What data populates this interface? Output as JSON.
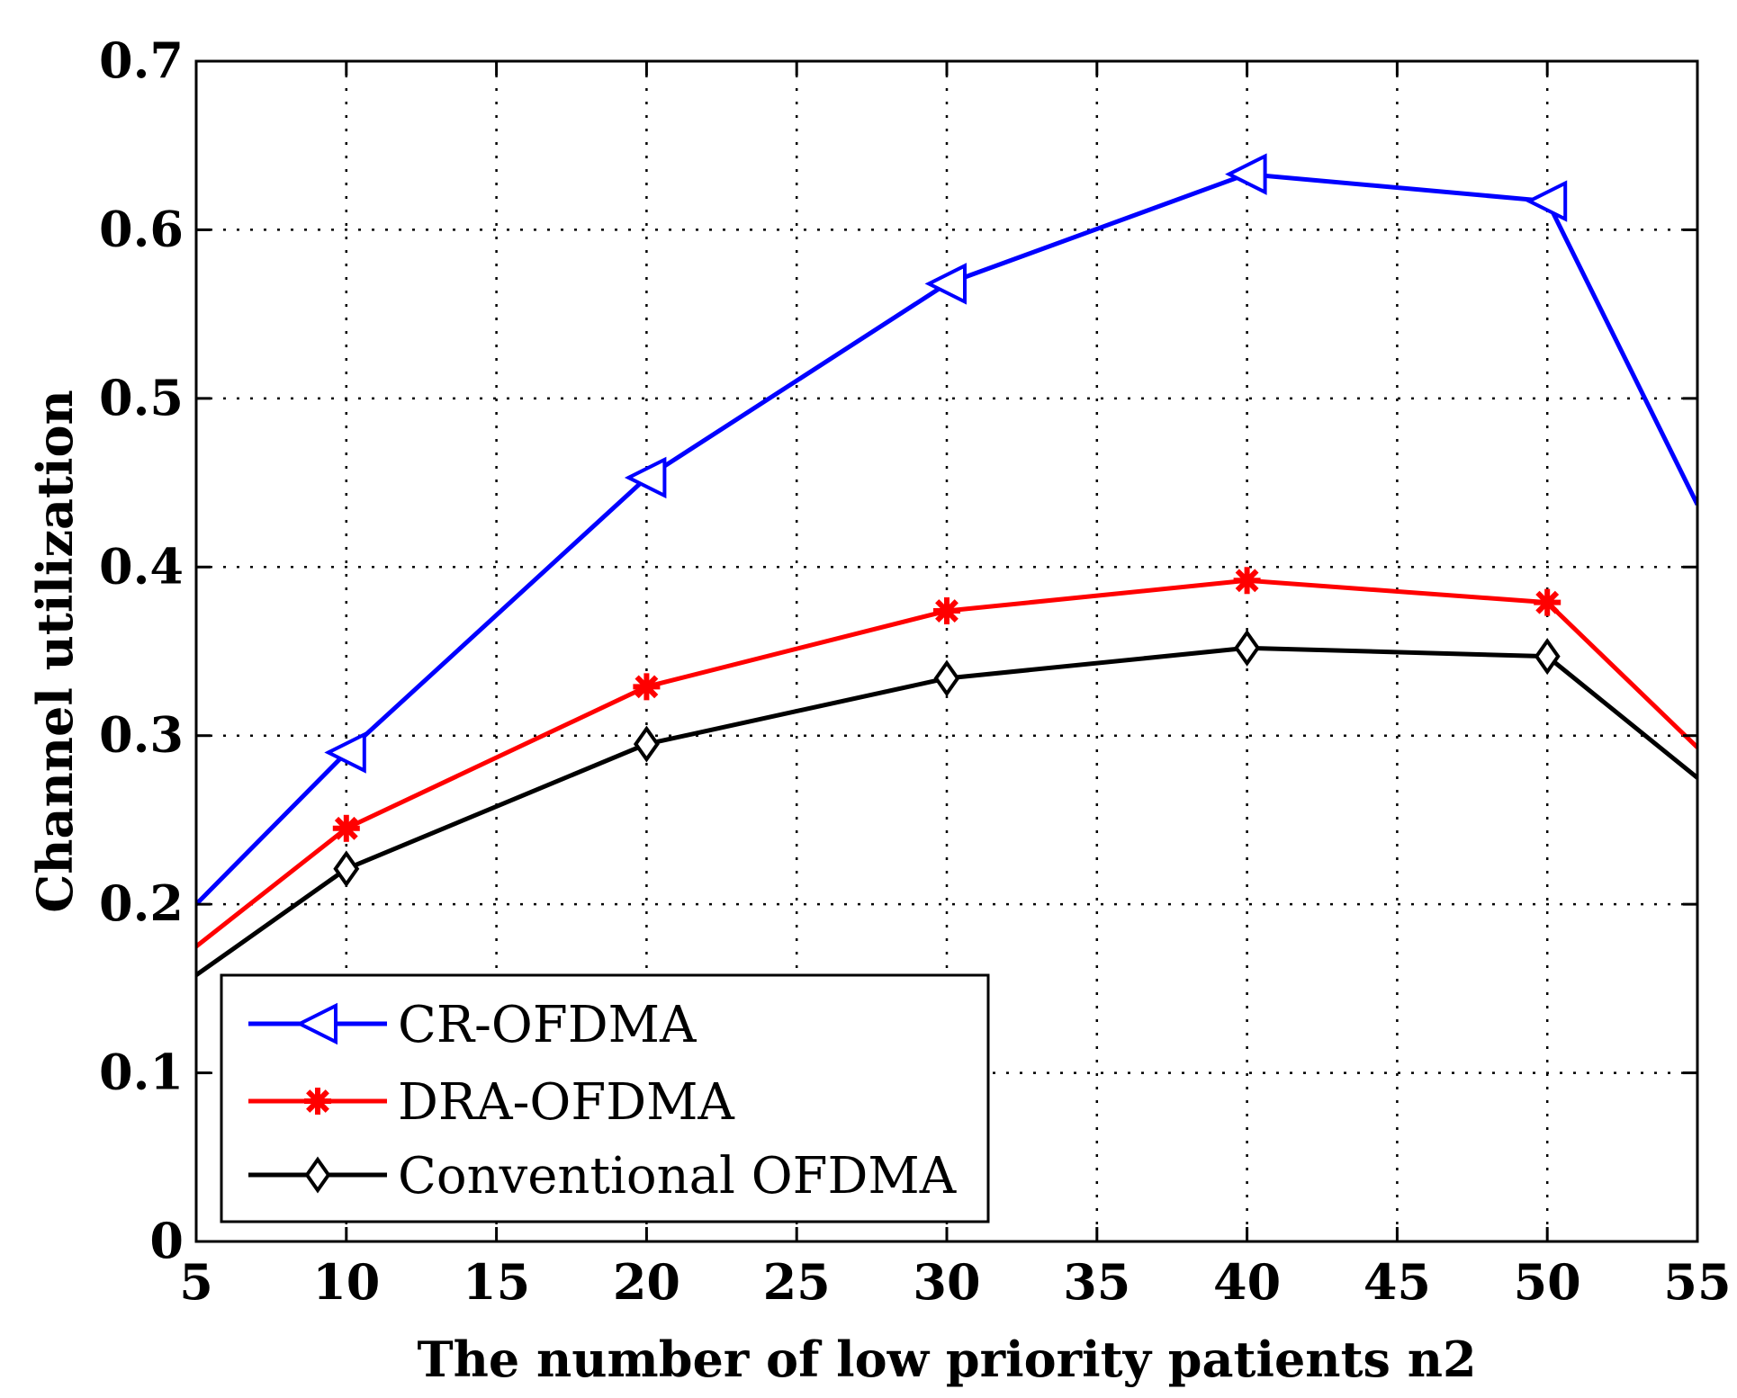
{
  "chart_data": {
    "type": "line",
    "xlabel": "The number of low priority patients n2",
    "ylabel": "Channel utilization",
    "xlim": [
      5,
      55
    ],
    "ylim": [
      0,
      0.7
    ],
    "x_ticks": [
      5,
      10,
      15,
      20,
      25,
      30,
      35,
      40,
      45,
      50,
      55
    ],
    "y_ticks": [
      0,
      0.1,
      0.2,
      0.3,
      0.4,
      0.5,
      0.6,
      0.7
    ],
    "x_tick_labels": [
      "5",
      "10",
      "15",
      "20",
      "25",
      "30",
      "35",
      "40",
      "45",
      "50",
      "55"
    ],
    "y_tick_labels": [
      "0",
      "0.1",
      "0.2",
      "0.3",
      "0.4",
      "0.5",
      "0.6",
      "0.7"
    ],
    "grid": true,
    "legend_position": "bottom-left",
    "series": [
      {
        "name": "CR-OFDMA",
        "color": "#0000ff",
        "marker": "triangle-left",
        "x": [
          5,
          10,
          20,
          30,
          40,
          50,
          55
        ],
        "y": [
          0.2,
          0.29,
          0.453,
          0.568,
          0.633,
          0.617,
          0.437
        ],
        "marker_x": [
          10,
          20,
          30,
          40,
          50
        ]
      },
      {
        "name": "DRA-OFDMA",
        "color": "#ff0000",
        "marker": "asterisk",
        "x": [
          5,
          10,
          20,
          30,
          40,
          50,
          55
        ],
        "y": [
          0.175,
          0.245,
          0.329,
          0.374,
          0.392,
          0.379,
          0.293
        ],
        "marker_x": [
          10,
          20,
          30,
          40,
          50
        ]
      },
      {
        "name": "Conventional OFDMA",
        "color": "#000000",
        "marker": "diamond",
        "x": [
          5,
          10,
          20,
          30,
          40,
          50,
          55
        ],
        "y": [
          0.158,
          0.221,
          0.295,
          0.334,
          0.352,
          0.347,
          0.275
        ],
        "marker_x": [
          10,
          20,
          30,
          40,
          50
        ]
      }
    ]
  }
}
